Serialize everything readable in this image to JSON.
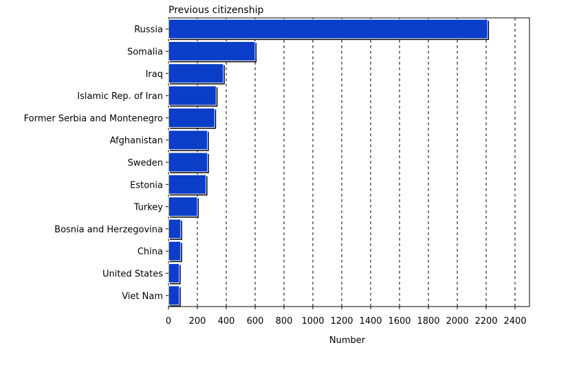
{
  "chart_data": {
    "type": "bar",
    "orientation": "horizontal",
    "title": "Previous citizenship",
    "xlabel": "Number",
    "ylabel": "",
    "categories": [
      "Russia",
      "Somalia",
      "Iraq",
      "Islamic Rep. of Iran",
      "Former Serbia and Montenegro",
      "Afghanistan",
      "Sweden",
      "Estonia",
      "Turkey",
      "Bosnia and Herzegovina",
      "China",
      "United States",
      "Viet Nam"
    ],
    "values": [
      2210,
      600,
      380,
      330,
      320,
      270,
      270,
      260,
      200,
      85,
      85,
      75,
      75
    ],
    "xlim": [
      0,
      2500
    ],
    "xticks": [
      0,
      200,
      400,
      600,
      800,
      1000,
      1200,
      1400,
      1600,
      1800,
      2000,
      2200,
      2400
    ],
    "grid": "vertical dashed",
    "bar_color": "#0a3ec8",
    "bar_shadow_color": "#000000",
    "legend": "none"
  }
}
